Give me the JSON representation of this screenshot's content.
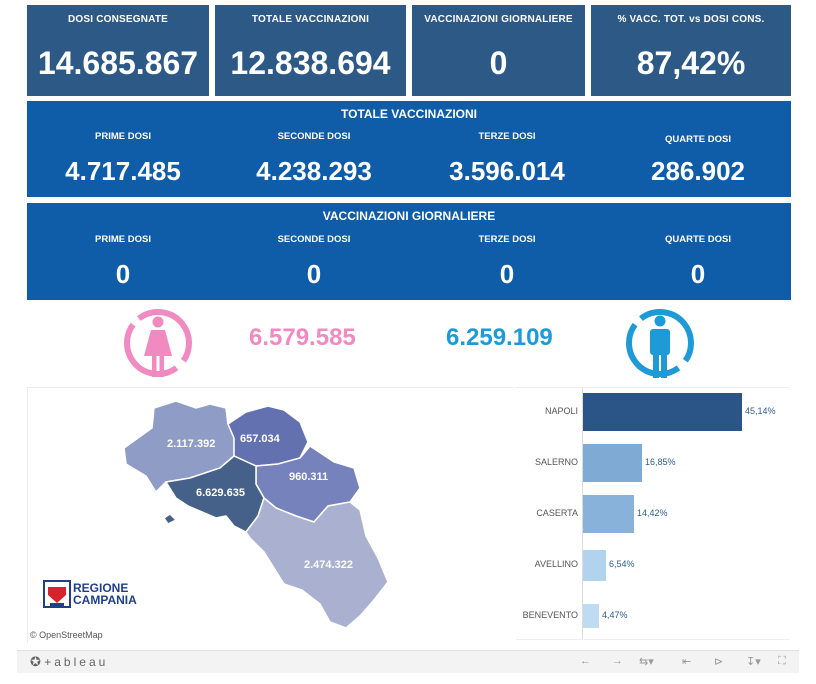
{
  "kpis": [
    {
      "label": "DOSI  CONSEGNATE",
      "value": "14.685.867"
    },
    {
      "label": "TOTALE VACCINAZIONI",
      "value": "12.838.694"
    },
    {
      "label": "VACCINAZIONI GIORNALIERE",
      "value": "0"
    },
    {
      "label": "% VACC. TOT. vs DOSI CONS.",
      "value": "87,42%"
    }
  ],
  "totale": {
    "title": "TOTALE VACCINAZIONI",
    "cells": [
      {
        "label": "PRIME DOSI",
        "value": "4.717.485"
      },
      {
        "label": "SECONDE DOSI",
        "value": "4.238.293"
      },
      {
        "label": "TERZE DOSI",
        "value": "3.596.014"
      },
      {
        "label": "QUARTE DOSI",
        "value": "286.902"
      }
    ]
  },
  "giornaliere": {
    "title": "VACCINAZIONI GIORNALIERE",
    "cells": [
      {
        "label": "PRIME DOSI",
        "value": "0"
      },
      {
        "label": "SECONDE DOSI",
        "value": "0"
      },
      {
        "label": "TERZE DOSI",
        "value": "0"
      },
      {
        "label": "QUARTE DOSI",
        "value": "0"
      }
    ]
  },
  "gender": {
    "female_value": "6.579.585",
    "male_value": "6.259.109",
    "female_color": "#f08ac0",
    "male_color": "#1e9ad6",
    "female_icon": "female-person-icon",
    "male_icon": "male-person-icon"
  },
  "map": {
    "labels": {
      "caserta": "2.117.392",
      "benevento": "657.034",
      "avellino": "960.311",
      "napoli": "6.629.635",
      "salerno": "2.474.322"
    },
    "logo_line1": "REGIONE",
    "logo_line2": "CAMPANIA",
    "attribution": "© OpenStreetMap"
  },
  "chart_data": {
    "type": "bar",
    "orientation": "horizontal",
    "categories": [
      "NAPOLI",
      "SALERNO",
      "CASERTA",
      "AVELLINO",
      "BENEVENTO"
    ],
    "values": [
      45.14,
      16.85,
      14.42,
      6.54,
      4.47
    ],
    "value_labels": [
      "45,14%",
      "16,85%",
      "14,42%",
      "6,54%",
      "4,47%"
    ],
    "colors": [
      "#2b5587",
      "#7eaad4",
      "#89b2da",
      "#b1d3ee",
      "#bedbf2"
    ]
  },
  "footer": {
    "brand": "+ableau",
    "icons": [
      "undo-icon",
      "redo-icon",
      "revert-icon",
      "reset-icon",
      "share-icon",
      "download-icon",
      "fullscreen-icon"
    ]
  }
}
